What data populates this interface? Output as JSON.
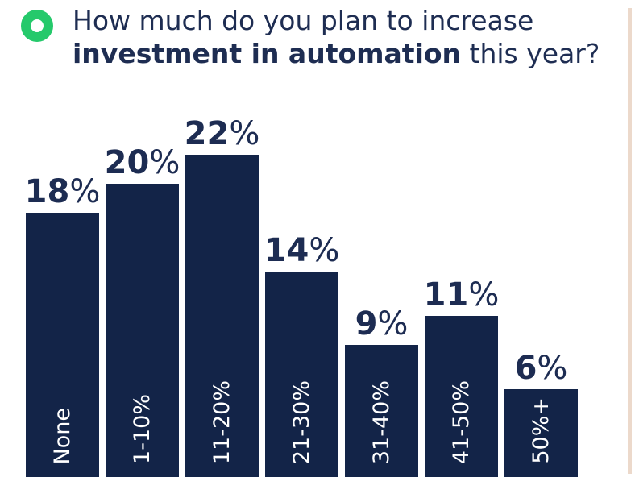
{
  "header": {
    "title_line1": "How much do you plan to increase",
    "title_bold": "investment in automation",
    "title_tail": " this year?"
  },
  "chart_data": {
    "type": "bar",
    "title": "How much do you plan to increase investment in automation this year?",
    "categories": [
      "None",
      "1-10%",
      "11-20%",
      "21-30%",
      "31-40%",
      "41-50%",
      "50%+"
    ],
    "values": [
      18,
      20,
      22,
      14,
      9,
      11,
      6
    ],
    "unit": "%",
    "value_labels": [
      "18%",
      "20%",
      "22%",
      "14%",
      "9%",
      "11%",
      "6%"
    ],
    "ylim": [
      0,
      24
    ],
    "grid": false,
    "legend": false,
    "bar_color": "#132448",
    "value_label_color": "#1d2c52",
    "category_label_color": "#ffffff",
    "value_labels_position": "above-bars",
    "category_labels_position": "inside-bars-bottom-rotated-90"
  },
  "decorations": {
    "bullet_icon_color": "#25c96b",
    "right_divider_color": "#ecd9cb"
  }
}
